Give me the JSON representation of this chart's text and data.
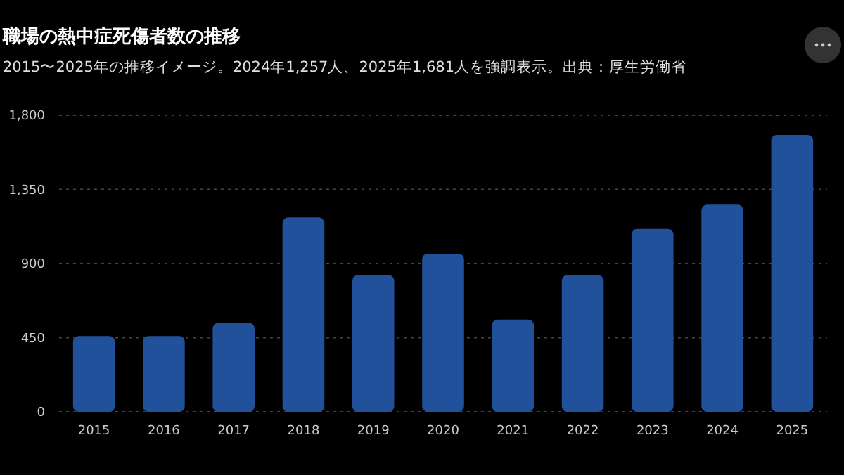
{
  "chart_data": {
    "type": "bar",
    "title": "職場の熱中症死傷者数の推移",
    "subtitle": "2015〜2025年の推移イメージ。2024年1,257人、2025年1,681人を強調表示。出典：厚生労働省",
    "categories": [
      "2015",
      "2016",
      "2017",
      "2018",
      "2019",
      "2020",
      "2021",
      "2022",
      "2023",
      "2024",
      "2025"
    ],
    "values": [
      460,
      460,
      540,
      1180,
      830,
      960,
      560,
      830,
      1110,
      1257,
      1681
    ],
    "color": "#22519c",
    "ylim": [
      0,
      1800
    ],
    "yticks": [
      0,
      {
        "value": 450,
        "label": "450"
      },
      {
        "value": 900,
        "label": "900"
      },
      {
        "value": 1350,
        "label": "1,350"
      },
      {
        "value": 1800,
        "label": "1,800"
      }
    ],
    "grid": "y"
  }
}
